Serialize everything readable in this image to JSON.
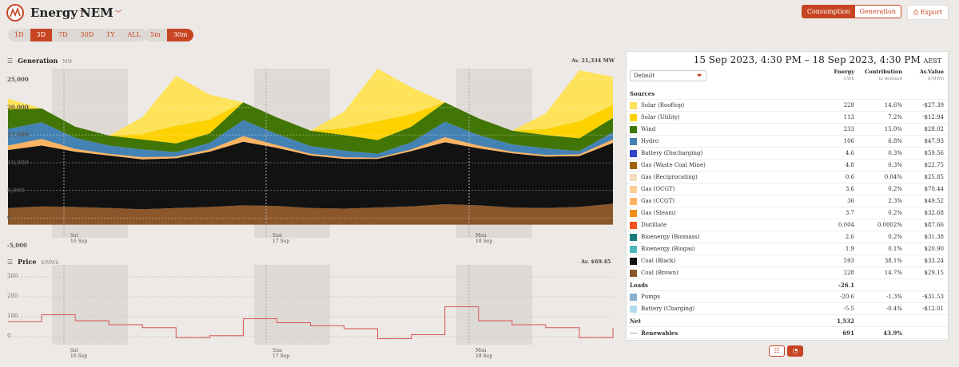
{
  "header": {
    "region_select": "Energy",
    "network_select": "NEM",
    "mode_buttons": [
      "Consumption",
      "Generation"
    ],
    "active_mode": "Consumption",
    "export_label": "Export"
  },
  "ranges": {
    "primary": [
      "1D",
      "3D",
      "7D",
      "30D",
      "1Y",
      "ALL"
    ],
    "active_primary": "3D",
    "interval": [
      "5m",
      "30m"
    ],
    "active_interval": "30m"
  },
  "generation": {
    "title": "Generation",
    "unit": "MW",
    "average": "Av. 21,334 MW",
    "y_ticks": [
      "25,000",
      "20,000",
      "15,000",
      "10,000",
      "5,000",
      "0",
      "-5,000"
    ]
  },
  "price": {
    "title": "Price",
    "unit": "$/MWh",
    "average": "Av. $69.45",
    "y_ticks": [
      "300",
      "200",
      "100",
      "0"
    ]
  },
  "day_labels": [
    {
      "day": "Sat",
      "date": "16 Sep"
    },
    {
      "day": "Sun",
      "date": "17 Sep"
    },
    {
      "day": "Mon",
      "date": "18 Sep"
    }
  ],
  "table": {
    "range_text": "15 Sep 2023, 4:30 PM – 18 Sep 2023, 4:30 PM",
    "tz": "AEST",
    "select": "Default",
    "col_energy": "Energy",
    "col_energy_unit": "GWh",
    "col_contrib": "Contribution",
    "col_contrib_unit": "to demand",
    "col_value": "Av.Value",
    "col_value_unit": "$/MWh",
    "sources_label": "Sources",
    "sources": [
      {
        "name": "Solar (Rooftop)",
        "color": "#fde25a",
        "energy": "228",
        "contrib": "14.6%",
        "value": "-$27.39"
      },
      {
        "name": "Solar (Utility)",
        "color": "#fdd200",
        "energy": "113",
        "contrib": "7.2%",
        "value": "-$12.94"
      },
      {
        "name": "Wind",
        "color": "#417505",
        "energy": "233",
        "contrib": "15.0%",
        "value": "$28.02"
      },
      {
        "name": "Hydro",
        "color": "#4582b4",
        "energy": "106",
        "contrib": "6.8%",
        "value": "$47.93"
      },
      {
        "name": "Battery (Discharging)",
        "color": "#3245c8",
        "energy": "4.6",
        "contrib": "0.3%",
        "value": "$59.56"
      },
      {
        "name": "Gas (Waste Coal Mine)",
        "color": "#a1620e",
        "energy": "4.8",
        "contrib": "0.3%",
        "value": "$22.75"
      },
      {
        "name": "Gas (Reciprocating)",
        "color": "#f5dcc0",
        "energy": "0.6",
        "contrib": "0.04%",
        "value": "$25.85"
      },
      {
        "name": "Gas (OCGT)",
        "color": "#ffcd96",
        "energy": "3.6",
        "contrib": "0.2%",
        "value": "$70.44"
      },
      {
        "name": "Gas (CCGT)",
        "color": "#fdb462",
        "energy": "36",
        "contrib": "2.3%",
        "value": "$49.52"
      },
      {
        "name": "Gas (Steam)",
        "color": "#f48e1b",
        "energy": "3.7",
        "contrib": "0.2%",
        "value": "$32.68"
      },
      {
        "name": "Distillate",
        "color": "#f35020",
        "energy": "0.004",
        "contrib": "0.0002%",
        "value": "$87.66"
      },
      {
        "name": "Bioenergy (Biomass)",
        "color": "#1d7a7a",
        "energy": "2.6",
        "contrib": "0.2%",
        "value": "$31.38"
      },
      {
        "name": "Bioenergy (Biogas)",
        "color": "#4cb9b9",
        "energy": "1.9",
        "contrib": "0.1%",
        "value": "$20.90"
      },
      {
        "name": "Coal (Black)",
        "color": "#121212",
        "energy": "593",
        "contrib": "38.1%",
        "value": "$33.24"
      },
      {
        "name": "Coal (Brown)",
        "color": "#8b572a",
        "energy": "228",
        "contrib": "14.7%",
        "value": "$29.15"
      }
    ],
    "loads_label": "Loads",
    "loads_energy": "-26.1",
    "loads": [
      {
        "name": "Pumps",
        "color": "#88aed0",
        "energy": "-20.6",
        "contrib": "-1.3%",
        "value": "-$31.53"
      },
      {
        "name": "Battery (Charging)",
        "color": "#b2daef",
        "energy": "-5.5",
        "contrib": "-0.4%",
        "value": "-$12.01"
      }
    ],
    "net_label": "Net",
    "net_energy": "1,532",
    "renew_label": "Renewables",
    "renew_energy": "691",
    "renew_contrib": "43.9%"
  },
  "chart_data": [
    {
      "type": "area",
      "title": "Generation",
      "ylabel": "MW",
      "ylim": [
        -5000,
        27000
      ],
      "x": [
        "15 Sep 16:30",
        "15 Sep 20:00",
        "16 Sep 00:00",
        "16 Sep 04:00",
        "16 Sep 08:00",
        "16 Sep 12:00",
        "16 Sep 16:00",
        "16 Sep 20:00",
        "17 Sep 00:00",
        "17 Sep 04:00",
        "17 Sep 08:00",
        "17 Sep 12:00",
        "17 Sep 16:00",
        "17 Sep 20:00",
        "18 Sep 00:00",
        "18 Sep 04:00",
        "18 Sep 08:00",
        "18 Sep 12:00",
        "18 Sep 16:30"
      ],
      "series": [
        {
          "name": "Coal (Brown)",
          "values": [
            3000,
            3300,
            3200,
            3000,
            2800,
            3000,
            3200,
            3500,
            3400,
            3000,
            2900,
            3100,
            3300,
            3700,
            3500,
            3100,
            3000,
            3200,
            3800
          ]
        },
        {
          "name": "Coal (Black)",
          "values": [
            10500,
            11000,
            10000,
            9500,
            9000,
            9000,
            10000,
            11500,
            10500,
            9500,
            9000,
            8800,
            10000,
            11200,
            10300,
            9800,
            9300,
            9200,
            11000
          ]
        },
        {
          "name": "Gas (CCGT)",
          "values": [
            800,
            1200,
            500,
            300,
            400,
            300,
            400,
            1000,
            500,
            300,
            300,
            200,
            300,
            900,
            500,
            300,
            300,
            300,
            600
          ]
        },
        {
          "name": "Hydro",
          "values": [
            3000,
            3000,
            2000,
            1500,
            1400,
            800,
            1200,
            2900,
            2000,
            1400,
            1200,
            700,
            1300,
            2800,
            1900,
            1300,
            1200,
            600,
            1300
          ]
        },
        {
          "name": "Wind",
          "values": [
            3500,
            2500,
            2000,
            1800,
            1800,
            1600,
            1700,
            3200,
            3000,
            2800,
            2800,
            2500,
            2800,
            3500,
            3000,
            2500,
            2400,
            2300,
            2600
          ]
        },
        {
          "name": "Solar (Utility)",
          "values": [
            500,
            0,
            0,
            0,
            1000,
            3200,
            2500,
            0,
            0,
            0,
            1200,
            3400,
            2300,
            0,
            0,
            0,
            1100,
            3100,
            2400
          ]
        },
        {
          "name": "Solar (Rooftop)",
          "values": [
            1500,
            0,
            0,
            0,
            3000,
            9000,
            4500,
            0,
            0,
            0,
            3000,
            9500,
            4800,
            0,
            0,
            0,
            2800,
            9200,
            5000
          ]
        }
      ]
    },
    {
      "type": "line",
      "title": "Price",
      "ylabel": "$/MWh",
      "ylim": [
        -20,
        320
      ],
      "x": [
        "15 Sep 16:30",
        "15 Sep 20:00",
        "16 Sep 00:00",
        "16 Sep 04:00",
        "16 Sep 08:00",
        "16 Sep 12:00",
        "16 Sep 16:00",
        "16 Sep 20:00",
        "17 Sep 00:00",
        "17 Sep 04:00",
        "17 Sep 08:00",
        "17 Sep 12:00",
        "17 Sep 16:00",
        "17 Sep 20:00",
        "18 Sep 00:00",
        "18 Sep 04:00",
        "18 Sep 08:00",
        "18 Sep 12:00",
        "18 Sep 16:30"
      ],
      "series": [
        {
          "name": "Price",
          "values": [
            75,
            110,
            80,
            60,
            45,
            -5,
            5,
            90,
            70,
            55,
            40,
            -10,
            10,
            150,
            80,
            60,
            45,
            -5,
            45
          ]
        }
      ]
    }
  ]
}
